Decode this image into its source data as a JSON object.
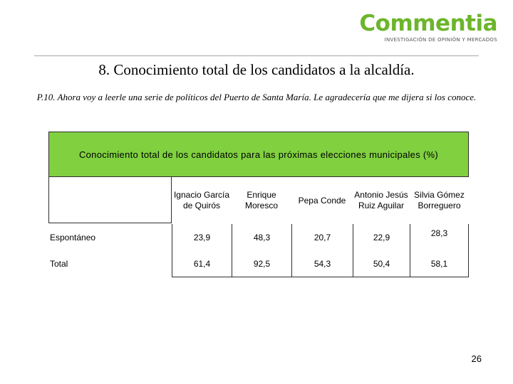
{
  "logo": {
    "name": "Commentia",
    "tagline": "INVESTIGACIÓN DE OPINIÓN Y MERCADOS"
  },
  "title": "8. Conocimiento total de los candidatos a la alcaldía.",
  "question": "P.10. Ahora voy a leerle una serie de políticos del Puerto de Santa María. Le agradecería que me dijera si los conoce.",
  "table": {
    "header": "Conocimiento total de los candidatos para las próximas elecciones municipales (%)",
    "columns": [
      "Ignacio García de Quirós",
      "Enrique Moresco",
      "Pepa Conde",
      "Antonio Jesús Ruiz Aguilar",
      "Silvia Gómez Borreguero"
    ],
    "rows": [
      {
        "label": "Espontáneo",
        "values": [
          "23,9",
          "48,3",
          "20,7",
          "22,9",
          "28,3"
        ]
      },
      {
        "label": "Total",
        "values": [
          "61,4",
          "92,5",
          "54,3",
          "50,4",
          "58,1"
        ]
      }
    ]
  },
  "page_number": "26"
}
